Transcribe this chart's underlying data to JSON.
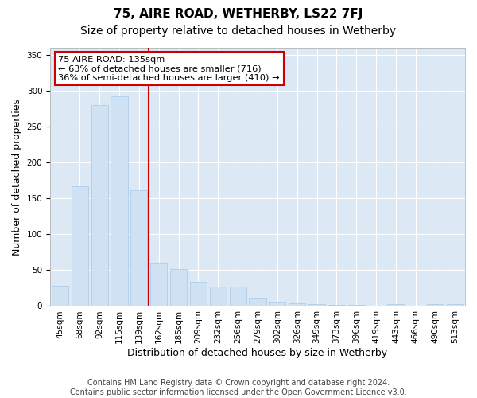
{
  "title": "75, AIRE ROAD, WETHERBY, LS22 7FJ",
  "subtitle": "Size of property relative to detached houses in Wetherby",
  "xlabel": "Distribution of detached houses by size in Wetherby",
  "ylabel": "Number of detached properties",
  "bar_color": "#cfe2f3",
  "bar_edge_color": "#a8c8e8",
  "grid_color": "#ffffff",
  "bg_color": "#dce9f5",
  "annotation_box_color": "#cc0000",
  "vline_color": "#cc0000",
  "annotation_text": "75 AIRE ROAD: 135sqm\n← 63% of detached houses are smaller (716)\n36% of semi-detached houses are larger (410) →",
  "footer": "Contains HM Land Registry data © Crown copyright and database right 2024.\nContains public sector information licensed under the Open Government Licence v3.0.",
  "categories": [
    "45sqm",
    "68sqm",
    "92sqm",
    "115sqm",
    "139sqm",
    "162sqm",
    "185sqm",
    "209sqm",
    "232sqm",
    "256sqm",
    "279sqm",
    "302sqm",
    "326sqm",
    "349sqm",
    "373sqm",
    "396sqm",
    "419sqm",
    "443sqm",
    "466sqm",
    "490sqm",
    "513sqm"
  ],
  "values": [
    28,
    167,
    280,
    292,
    161,
    59,
    52,
    34,
    27,
    27,
    10,
    5,
    4,
    3,
    2,
    2,
    0,
    3,
    0,
    3,
    3
  ],
  "ylim": [
    0,
    360
  ],
  "yticks": [
    0,
    50,
    100,
    150,
    200,
    250,
    300,
    350
  ],
  "bar_width": 0.85,
  "figsize": [
    6.0,
    5.0
  ],
  "dpi": 100,
  "title_fontsize": 11,
  "subtitle_fontsize": 10,
  "axis_label_fontsize": 9,
  "tick_fontsize": 7.5,
  "footer_fontsize": 7
}
